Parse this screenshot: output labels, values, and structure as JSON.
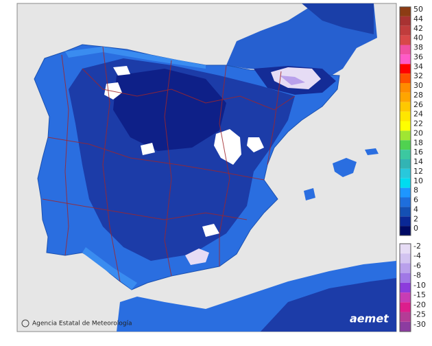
{
  "legend": {
    "upper": [
      {
        "value": 50,
        "color": "#8c3c14"
      },
      {
        "value": 44,
        "color": "#a83232"
      },
      {
        "value": 42,
        "color": "#c03c3c"
      },
      {
        "value": 40,
        "color": "#d84848"
      },
      {
        "value": 38,
        "color": "#f050a0"
      },
      {
        "value": 36,
        "color": "#ff5ac8"
      },
      {
        "value": 34,
        "color": "#ff0000"
      },
      {
        "value": 32,
        "color": "#ff5000"
      },
      {
        "value": 30,
        "color": "#ff8c00"
      },
      {
        "value": 28,
        "color": "#ffa500"
      },
      {
        "value": 26,
        "color": "#ffc800"
      },
      {
        "value": 24,
        "color": "#ffe600"
      },
      {
        "value": 22,
        "color": "#ffff00"
      },
      {
        "value": 20,
        "color": "#a0e632"
      },
      {
        "value": 18,
        "color": "#50d250"
      },
      {
        "value": 16,
        "color": "#3cc8a0"
      },
      {
        "value": 14,
        "color": "#32b4b4"
      },
      {
        "value": 12,
        "color": "#28c8dc"
      },
      {
        "value": 10,
        "color": "#00dcf0"
      },
      {
        "value": 8,
        "color": "#1e96ff"
      },
      {
        "value": 6,
        "color": "#1e6edc"
      },
      {
        "value": 4,
        "color": "#1450b4"
      },
      {
        "value": 2,
        "color": "#0a2896"
      },
      {
        "value": 0,
        "color": "#000a64"
      }
    ],
    "lower": [
      {
        "value": -2,
        "color": "#e6dcf5"
      },
      {
        "value": -4,
        "color": "#d2c3f0"
      },
      {
        "value": -6,
        "color": "#b9a0eb"
      },
      {
        "value": -8,
        "color": "#a078e6"
      },
      {
        "value": -10,
        "color": "#8c3cdc"
      },
      {
        "value": -15,
        "color": "#c83cb4"
      },
      {
        "value": -20,
        "color": "#dc1e8c"
      },
      {
        "value": -25,
        "color": "#b43c96"
      },
      {
        "value": -30,
        "color": "#8c3ca0"
      }
    ]
  },
  "footer": {
    "agency": "Agencia Estatal de Meteorología",
    "logo": "aemet"
  }
}
